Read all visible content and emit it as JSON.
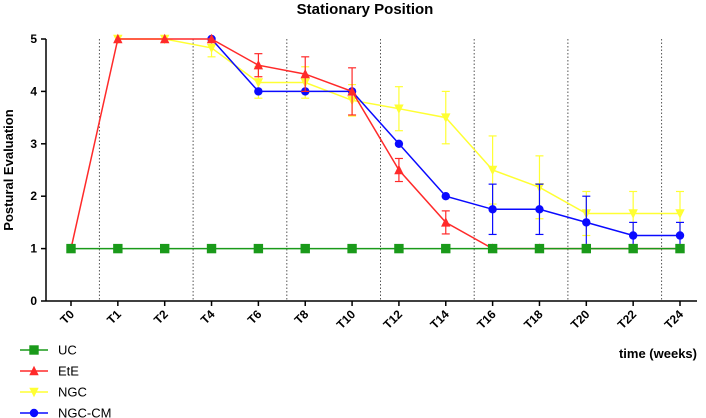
{
  "chart_data": {
    "type": "line",
    "title": "Stationary Position",
    "xlabel": "time (weeks)",
    "ylabel": "Postural Evaluation",
    "categories": [
      "T0",
      "T1",
      "T2",
      "T4",
      "T6",
      "T8",
      "T10",
      "T12",
      "T14",
      "T16",
      "T18",
      "T20",
      "T22",
      "T24"
    ],
    "ylim": [
      0,
      5
    ],
    "yticks": [
      0,
      1,
      2,
      3,
      4,
      5
    ],
    "grid": false,
    "legend_position": "bottom-left",
    "series": [
      {
        "name": "UC",
        "color": "#1a9a1a",
        "marker": "square",
        "values": [
          1,
          1,
          1,
          1,
          1,
          1,
          1,
          1,
          1,
          1,
          1,
          1,
          1,
          1
        ],
        "errors": [
          0,
          0,
          0,
          0,
          0,
          0,
          0,
          0,
          0,
          0,
          0,
          0,
          0,
          0
        ]
      },
      {
        "name": "EtE",
        "color": "#ff2a2a",
        "marker": "triangle",
        "values": [
          1,
          5,
          5,
          5,
          4.5,
          4.33,
          4,
          2.5,
          1.5,
          1,
          1,
          1,
          1,
          1
        ],
        "errors": [
          0,
          0,
          0,
          0,
          0.22,
          0.33,
          0.45,
          0.22,
          0.22,
          0,
          0,
          0,
          0,
          0
        ]
      },
      {
        "name": "NGC",
        "color": "#ffff33",
        "marker": "inverted-triangle",
        "values": [
          null,
          5,
          5,
          4.83,
          4.17,
          4.17,
          3.83,
          3.67,
          3.5,
          2.5,
          2.17,
          1.67,
          1.67,
          1.67
        ],
        "errors": [
          0,
          0,
          0,
          0.17,
          0.3,
          0.3,
          0.3,
          0.42,
          0.5,
          0.65,
          0.6,
          0.42,
          0.42,
          0.42
        ]
      },
      {
        "name": "NGC-CM",
        "color": "#0a0aff",
        "marker": "circle",
        "values": [
          null,
          null,
          null,
          5,
          4,
          4,
          4,
          3,
          2,
          1.75,
          1.75,
          1.5,
          1.25,
          1.25
        ],
        "errors": [
          0,
          0,
          0,
          0,
          0,
          0,
          0,
          0,
          0,
          0.48,
          0.48,
          0.5,
          0.25,
          0.25
        ]
      }
    ],
    "draw_order": [
      2,
      3,
      1,
      0
    ]
  }
}
